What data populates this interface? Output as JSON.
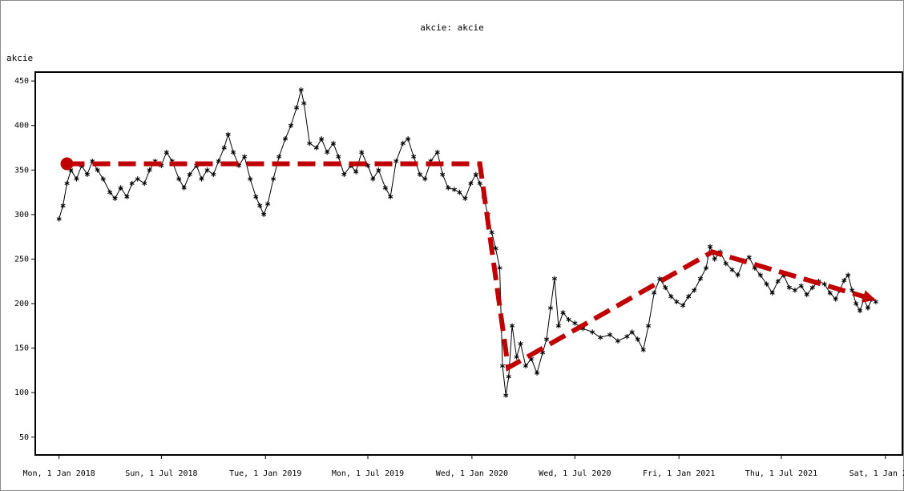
{
  "chart_data": {
    "type": "line",
    "title": "akcie: akcie",
    "ylabel": "akcie",
    "xlabel": "",
    "ylim": [
      30,
      460
    ],
    "yticks": [
      50,
      100,
      150,
      200,
      250,
      300,
      350,
      400,
      450
    ],
    "xlim": [
      "2017-11-20",
      "2022-01-31"
    ],
    "xticks": [
      {
        "date": "2018-01-01",
        "label": "Mon, 1 Jan 2018"
      },
      {
        "date": "2018-07-01",
        "label": "Sun, 1 Jul 2018"
      },
      {
        "date": "2019-01-01",
        "label": "Tue, 1 Jan 2019"
      },
      {
        "date": "2019-07-01",
        "label": "Mon, 1 Jul 2019"
      },
      {
        "date": "2020-01-01",
        "label": "Wed, 1 Jan 2020"
      },
      {
        "date": "2020-07-01",
        "label": "Wed, 1 Jul 2020"
      },
      {
        "date": "2021-01-01",
        "label": "Fri, 1 Jan 2021"
      },
      {
        "date": "2021-07-01",
        "label": "Thu, 1 Jul 2021"
      },
      {
        "date": "2022-01-01",
        "label": "Sat, 1 Jan 2022"
      }
    ],
    "grid": false,
    "colors": {
      "series": "#000000",
      "annotation": "#c00000",
      "frame": "#000000"
    },
    "series": [
      {
        "marker": "asterisk",
        "points": [
          [
            "2018-01-01",
            295
          ],
          [
            "2018-01-08",
            310
          ],
          [
            "2018-01-15",
            335
          ],
          [
            "2018-01-22",
            350
          ],
          [
            "2018-02-01",
            340
          ],
          [
            "2018-02-10",
            355
          ],
          [
            "2018-02-20",
            345
          ],
          [
            "2018-03-01",
            360
          ],
          [
            "2018-03-10",
            350
          ],
          [
            "2018-03-20",
            340
          ],
          [
            "2018-04-01",
            325
          ],
          [
            "2018-04-10",
            318
          ],
          [
            "2018-04-20",
            330
          ],
          [
            "2018-05-01",
            320
          ],
          [
            "2018-05-10",
            335
          ],
          [
            "2018-05-20",
            340
          ],
          [
            "2018-06-01",
            335
          ],
          [
            "2018-06-10",
            350
          ],
          [
            "2018-06-20",
            360
          ],
          [
            "2018-07-01",
            355
          ],
          [
            "2018-07-10",
            370
          ],
          [
            "2018-07-20",
            360
          ],
          [
            "2018-08-01",
            340
          ],
          [
            "2018-08-10",
            330
          ],
          [
            "2018-08-20",
            345
          ],
          [
            "2018-09-01",
            355
          ],
          [
            "2018-09-10",
            340
          ],
          [
            "2018-09-20",
            350
          ],
          [
            "2018-10-01",
            345
          ],
          [
            "2018-10-10",
            360
          ],
          [
            "2018-10-20",
            375
          ],
          [
            "2018-10-27",
            390
          ],
          [
            "2018-11-05",
            370
          ],
          [
            "2018-11-15",
            355
          ],
          [
            "2018-11-25",
            365
          ],
          [
            "2018-12-05",
            340
          ],
          [
            "2018-12-15",
            320
          ],
          [
            "2018-12-22",
            310
          ],
          [
            "2018-12-29",
            300
          ],
          [
            "2019-01-05",
            312
          ],
          [
            "2019-01-15",
            340
          ],
          [
            "2019-01-25",
            365
          ],
          [
            "2019-02-05",
            385
          ],
          [
            "2019-02-15",
            400
          ],
          [
            "2019-02-25",
            420
          ],
          [
            "2019-03-05",
            440
          ],
          [
            "2019-03-10",
            425
          ],
          [
            "2019-03-20",
            380
          ],
          [
            "2019-04-01",
            375
          ],
          [
            "2019-04-10",
            385
          ],
          [
            "2019-04-20",
            370
          ],
          [
            "2019-05-01",
            380
          ],
          [
            "2019-05-10",
            365
          ],
          [
            "2019-05-20",
            345
          ],
          [
            "2019-06-01",
            355
          ],
          [
            "2019-06-10",
            348
          ],
          [
            "2019-06-20",
            370
          ],
          [
            "2019-07-01",
            355
          ],
          [
            "2019-07-10",
            340
          ],
          [
            "2019-07-20",
            350
          ],
          [
            "2019-08-01",
            330
          ],
          [
            "2019-08-10",
            320
          ],
          [
            "2019-08-20",
            360
          ],
          [
            "2019-09-01",
            380
          ],
          [
            "2019-09-10",
            385
          ],
          [
            "2019-09-20",
            365
          ],
          [
            "2019-10-01",
            345
          ],
          [
            "2019-10-10",
            340
          ],
          [
            "2019-10-20",
            360
          ],
          [
            "2019-11-01",
            370
          ],
          [
            "2019-11-10",
            345
          ],
          [
            "2019-11-20",
            330
          ],
          [
            "2019-12-01",
            328
          ],
          [
            "2019-12-10",
            325
          ],
          [
            "2019-12-20",
            318
          ],
          [
            "2019-12-30",
            335
          ],
          [
            "2020-01-08",
            345
          ],
          [
            "2020-01-15",
            335
          ],
          [
            "2020-01-22",
            320
          ],
          [
            "2020-01-29",
            300
          ],
          [
            "2020-02-05",
            280
          ],
          [
            "2020-02-12",
            262
          ],
          [
            "2020-02-19",
            240
          ],
          [
            "2020-02-24",
            130
          ],
          [
            "2020-03-01",
            97
          ],
          [
            "2020-03-06",
            118
          ],
          [
            "2020-03-12",
            175
          ],
          [
            "2020-03-20",
            140
          ],
          [
            "2020-03-27",
            155
          ],
          [
            "2020-04-05",
            130
          ],
          [
            "2020-04-15",
            138
          ],
          [
            "2020-04-25",
            122
          ],
          [
            "2020-05-05",
            145
          ],
          [
            "2020-05-12",
            160
          ],
          [
            "2020-05-19",
            195
          ],
          [
            "2020-05-26",
            228
          ],
          [
            "2020-06-02",
            175
          ],
          [
            "2020-06-10",
            190
          ],
          [
            "2020-06-20",
            182
          ],
          [
            "2020-07-01",
            178
          ],
          [
            "2020-07-15",
            172
          ],
          [
            "2020-08-01",
            168
          ],
          [
            "2020-08-15",
            162
          ],
          [
            "2020-09-01",
            165
          ],
          [
            "2020-09-15",
            158
          ],
          [
            "2020-10-01",
            163
          ],
          [
            "2020-10-10",
            168
          ],
          [
            "2020-10-20",
            160
          ],
          [
            "2020-10-30",
            148
          ],
          [
            "2020-11-08",
            175
          ],
          [
            "2020-11-18",
            212
          ],
          [
            "2020-11-28",
            228
          ],
          [
            "2020-12-08",
            218
          ],
          [
            "2020-12-18",
            208
          ],
          [
            "2020-12-28",
            202
          ],
          [
            "2021-01-08",
            198
          ],
          [
            "2021-01-18",
            208
          ],
          [
            "2021-01-28",
            215
          ],
          [
            "2021-02-08",
            228
          ],
          [
            "2021-02-18",
            240
          ],
          [
            "2021-02-25",
            264
          ],
          [
            "2021-03-05",
            250
          ],
          [
            "2021-03-15",
            258
          ],
          [
            "2021-03-25",
            245
          ],
          [
            "2021-04-05",
            238
          ],
          [
            "2021-04-15",
            232
          ],
          [
            "2021-04-25",
            248
          ],
          [
            "2021-05-05",
            252
          ],
          [
            "2021-05-15",
            240
          ],
          [
            "2021-05-25",
            232
          ],
          [
            "2021-06-05",
            222
          ],
          [
            "2021-06-15",
            212
          ],
          [
            "2021-06-25",
            225
          ],
          [
            "2021-07-05",
            232
          ],
          [
            "2021-07-15",
            218
          ],
          [
            "2021-07-25",
            215
          ],
          [
            "2021-08-05",
            220
          ],
          [
            "2021-08-15",
            210
          ],
          [
            "2021-08-25",
            218
          ],
          [
            "2021-09-05",
            225
          ],
          [
            "2021-09-15",
            222
          ],
          [
            "2021-09-25",
            212
          ],
          [
            "2021-10-05",
            205
          ],
          [
            "2021-10-12",
            215
          ],
          [
            "2021-10-20",
            226
          ],
          [
            "2021-10-27",
            232
          ],
          [
            "2021-11-03",
            215
          ],
          [
            "2021-11-10",
            200
          ],
          [
            "2021-11-17",
            192
          ],
          [
            "2021-11-24",
            205
          ],
          [
            "2021-12-01",
            195
          ],
          [
            "2021-12-08",
            205
          ],
          [
            "2021-12-15",
            202
          ]
        ]
      }
    ],
    "annotation": {
      "style": "dashed-arrow",
      "start_marker": "dot",
      "points": [
        [
          "2018-01-15",
          357
        ],
        [
          "2020-01-15",
          357
        ],
        [
          "2020-03-05",
          128
        ],
        [
          "2021-03-01",
          258
        ],
        [
          "2021-12-15",
          204
        ]
      ]
    }
  }
}
